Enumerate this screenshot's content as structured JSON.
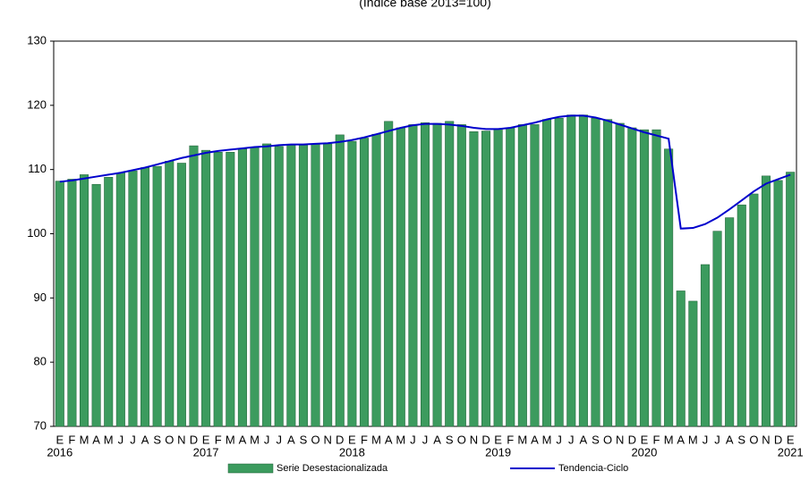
{
  "chart_data": {
    "type": "bar_line",
    "subtitle": "(Índice base 2013=100)",
    "categories": [
      "E",
      "F",
      "M",
      "A",
      "M",
      "J",
      "J",
      "A",
      "S",
      "O",
      "N",
      "D",
      "E",
      "F",
      "M",
      "A",
      "M",
      "J",
      "J",
      "A",
      "S",
      "O",
      "N",
      "D",
      "E",
      "F",
      "M",
      "A",
      "M",
      "J",
      "J",
      "A",
      "S",
      "O",
      "N",
      "D",
      "E",
      "F",
      "M",
      "A",
      "M",
      "J",
      "J",
      "A",
      "S",
      "O",
      "N",
      "D",
      "E",
      "F",
      "M",
      "A",
      "M",
      "J",
      "J",
      "A",
      "S",
      "O",
      "N",
      "D",
      "E"
    ],
    "category_years": [
      "2016",
      null,
      null,
      null,
      null,
      null,
      null,
      null,
      null,
      null,
      null,
      null,
      "2017",
      null,
      null,
      null,
      null,
      null,
      null,
      null,
      null,
      null,
      null,
      null,
      "2018",
      null,
      null,
      null,
      null,
      null,
      null,
      null,
      null,
      null,
      null,
      null,
      "2019",
      null,
      null,
      null,
      null,
      null,
      null,
      null,
      null,
      null,
      null,
      null,
      "2020",
      null,
      null,
      null,
      null,
      null,
      null,
      null,
      null,
      null,
      null,
      null,
      "2021"
    ],
    "series": [
      {
        "name": "Serie Desestacionalizada",
        "kind": "bar",
        "color": "#3c9b5e",
        "values": [
          108.2,
          108.5,
          109.2,
          107.7,
          108.8,
          109.5,
          109.8,
          110.3,
          110.5,
          111.3,
          111.0,
          113.7,
          113.0,
          112.7,
          112.7,
          113.2,
          113.5,
          114.0,
          113.6,
          113.8,
          113.8,
          114.0,
          114.0,
          115.4,
          114.4,
          114.9,
          115.5,
          117.5,
          116.5,
          117.0,
          117.3,
          117.2,
          117.5,
          117.0,
          115.9,
          116.0,
          116.3,
          116.5,
          117.0,
          117.0,
          117.8,
          118.0,
          118.5,
          118.5,
          118.0,
          117.8,
          117.2,
          116.5,
          116.2,
          116.2,
          113.2,
          91.1,
          89.5,
          95.2,
          100.4,
          102.5,
          104.5,
          106.2,
          109.0,
          108.3,
          109.6
        ]
      },
      {
        "name": "Tendencia-Ciclo",
        "kind": "line",
        "color": "#0000cc",
        "values": [
          108.1,
          108.3,
          108.6,
          108.9,
          109.2,
          109.5,
          109.9,
          110.3,
          110.8,
          111.3,
          111.8,
          112.2,
          112.6,
          112.9,
          113.1,
          113.3,
          113.5,
          113.6,
          113.8,
          113.9,
          113.9,
          114.0,
          114.1,
          114.3,
          114.6,
          115.0,
          115.5,
          116.0,
          116.5,
          116.9,
          117.1,
          117.1,
          117.0,
          116.8,
          116.5,
          116.3,
          116.3,
          116.5,
          116.9,
          117.3,
          117.8,
          118.2,
          118.4,
          118.4,
          118.1,
          117.6,
          117.0,
          116.4,
          115.8,
          115.3,
          114.8,
          100.8,
          100.9,
          101.5,
          102.5,
          103.8,
          105.2,
          106.6,
          107.8,
          108.5,
          109.2
        ]
      }
    ],
    "ylim": [
      70,
      130
    ],
    "yticks": [
      70,
      80,
      90,
      100,
      110,
      120,
      130
    ],
    "grid": false
  }
}
